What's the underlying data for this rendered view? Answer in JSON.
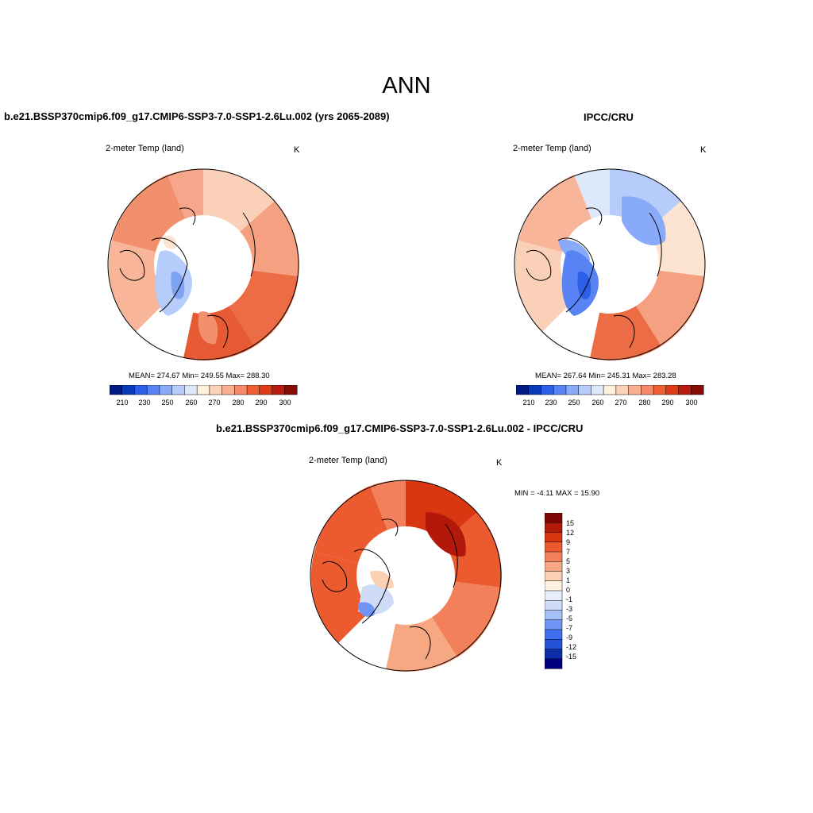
{
  "title": "ANN",
  "colors": {
    "cbar10": [
      "#001a80",
      "#0a3ab5",
      "#2c5ee8",
      "#5783f5",
      "#88aaf8",
      "#b6ccfa",
      "#dde8fb",
      "#fff0de",
      "#fcd2b7",
      "#f8b090",
      "#f58a64",
      "#ef6035",
      "#dd3b16",
      "#b81c0c",
      "#8b0a05"
    ],
    "diff": [
      "#00007e",
      "#0a2fa8",
      "#2453d6",
      "#3f6ef0",
      "#6f94f5",
      "#a6c0f8",
      "#cfdcf8",
      "#e6eef9",
      "#fff1df",
      "#fcd0b2",
      "#f7a781",
      "#f2805a",
      "#ec5a30",
      "#d93612",
      "#b3190a",
      "#7e0504"
    ],
    "land_warm_1": "#f6a68a",
    "land_warm_2": "#ee7f5a",
    "land_warm_3": "#e65b33",
    "land_cold": "#7ea3f0",
    "land_cold_2": "#4572e8",
    "land_pale": "#fde3d2",
    "land_blue_pale": "#c5d8fa"
  },
  "panels": {
    "left": {
      "title": "b.e21.BSSP370cmip6.f09_g17.CMIP6-SSP3-7.0-SSP1-2.6Lu.002 (yrs 2065-2089)",
      "variable": "2-meter Temp (land)",
      "units": "K",
      "stats": "MEAN= 274.67  Min= 249.55  Max= 288.30",
      "ticks": [
        "210",
        "230",
        "250",
        "260",
        "270",
        "280",
        "290",
        "300"
      ]
    },
    "right": {
      "title": "IPCC/CRU",
      "variable": "2-meter Temp (land)",
      "units": "K",
      "stats": "MEAN= 267.64  Min= 245.31  Max= 283.28",
      "ticks": [
        "210",
        "230",
        "250",
        "260",
        "270",
        "280",
        "290",
        "300"
      ]
    },
    "bottom": {
      "title": "b.e21.BSSP370cmip6.f09_g17.CMIP6-SSP3-7.0-SSP1-2.6Lu.002 - IPCC/CRU",
      "variable": "2-meter Temp (land)",
      "units": "K",
      "minmax": "MIN =  -4.11 MAX =  15.90",
      "ticks": [
        "15",
        "12",
        "9",
        "7",
        "5",
        "3",
        "1",
        "0",
        "-1",
        "-3",
        "-5",
        "-7",
        "-9",
        "-12",
        "-15"
      ]
    }
  }
}
